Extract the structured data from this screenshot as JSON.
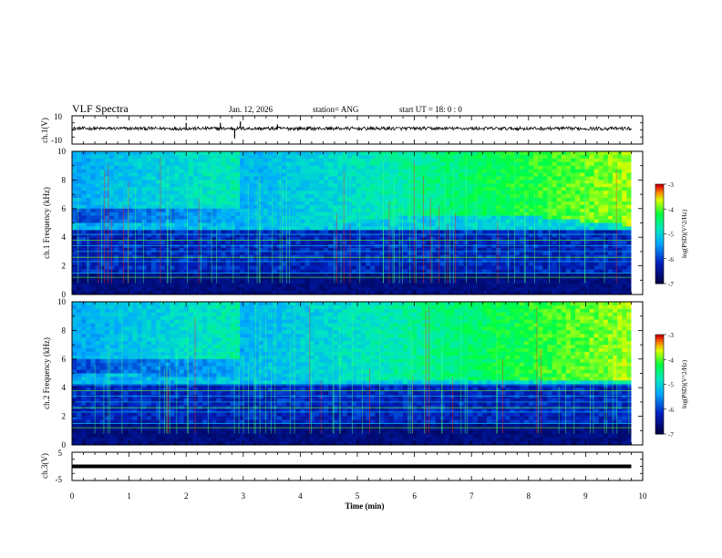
{
  "header": {
    "title": "VLF Spectra",
    "date": "Jan. 12, 2026",
    "station": "station= ANG",
    "start": "start  UT =   18: 0  : 0"
  },
  "colors": {
    "background_deep": "#00005a",
    "low": "#0040e0",
    "mid": "#00c8ff",
    "high": "#00ff60",
    "peak": "#ff0000"
  },
  "chart_data": [
    {
      "type": "line",
      "name": "ch1-waveform",
      "ylabel": "ch.1(V)",
      "ylim": [
        -10,
        10
      ],
      "yticks": [
        "10",
        "-10"
      ],
      "baseline": 1,
      "noise_amplitude": 1.2,
      "spikes": [
        {
          "t": 2.0,
          "v": 5
        },
        {
          "t": 2.6,
          "v": 5
        },
        {
          "t": 2.85,
          "v": -6
        },
        {
          "t": 2.95,
          "v": 6
        },
        {
          "t": 3.6,
          "v": 4
        }
      ],
      "xlim": [
        0,
        10.0
      ]
    },
    {
      "type": "heatmap",
      "name": "ch1-spectrogram",
      "ylabel": "ch.1 Frequency (kHz)",
      "ylim": [
        0,
        10
      ],
      "yticks": [
        "0",
        "2",
        "4",
        "6",
        "8",
        "10"
      ],
      "xlim": [
        0,
        10.0
      ],
      "data_end_min": 9.8,
      "colorbar": {
        "label": "log(PSD)(V^2/Hz)",
        "range": [
          -7,
          -3
        ],
        "ticks": [
          "-3",
          "-4",
          "-5",
          "-6",
          "-7"
        ]
      },
      "lower_band_top_khz": 4.5,
      "noise_edge_khz": [
        5.0,
        5.0,
        4.7,
        5.5,
        5.5,
        4.8
      ]
    },
    {
      "type": "heatmap",
      "name": "ch2-spectrogram",
      "ylabel": "ch.2 Frequency (kHz)",
      "ylim": [
        0,
        10
      ],
      "yticks": [
        "0",
        "2",
        "4",
        "6",
        "8",
        "10"
      ],
      "xlim": [
        0,
        10.0
      ],
      "data_end_min": 9.8,
      "colorbar": {
        "label": "log(PSD)(V^2/Hz)",
        "range": [
          -7,
          -3
        ],
        "ticks": [
          "-3",
          "-4",
          "-5",
          "-6",
          "-7"
        ]
      },
      "lower_band_top_khz": 4.2,
      "noise_edge_khz": [
        5.0,
        4.8,
        4.5,
        4.6,
        4.5,
        4.5
      ]
    },
    {
      "type": "line",
      "name": "ch3-waveform",
      "ylabel": "ch.3(V)",
      "ylim": [
        -5,
        5
      ],
      "yticks": [
        "5",
        "-5"
      ],
      "baseline": 0,
      "xlim": [
        0,
        10.0
      ]
    }
  ],
  "xaxis": {
    "label": "Time (min)",
    "ticks": [
      "0",
      "1",
      "2",
      "3",
      "4",
      "5",
      "6",
      "7",
      "8",
      "9",
      "10"
    ]
  }
}
